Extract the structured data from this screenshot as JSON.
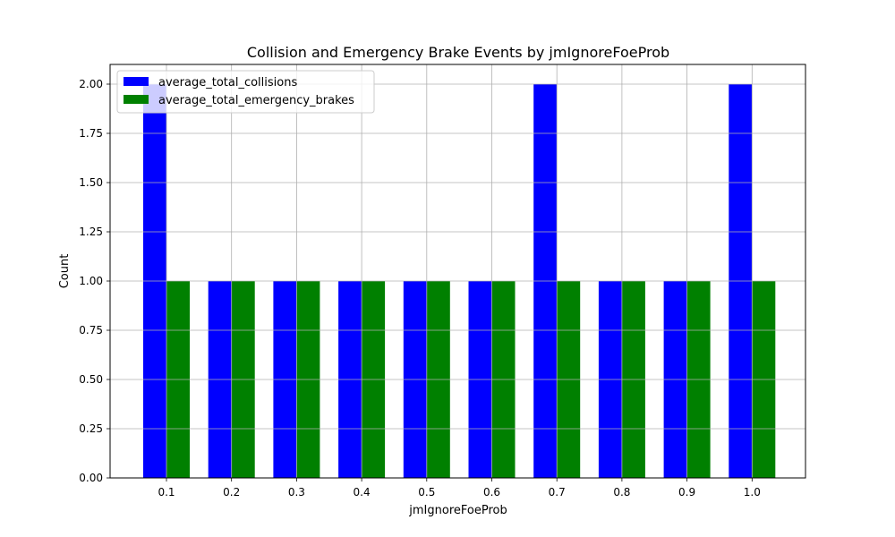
{
  "chart_data": {
    "type": "bar",
    "title": "Collision and Emergency Brake Events by jmIgnoreFoeProb",
    "xlabel": "jmIgnoreFoeProb",
    "ylabel": "Count",
    "categories": [
      "0.1",
      "0.2",
      "0.3",
      "0.4",
      "0.5",
      "0.6",
      "0.7",
      "0.8",
      "0.9",
      "1.0"
    ],
    "series": [
      {
        "name": "average_total_collisions",
        "color": "#0000ff",
        "values": [
          2,
          1,
          1,
          1,
          1,
          1,
          2,
          1,
          1,
          2
        ]
      },
      {
        "name": "average_total_emergency_brakes",
        "color": "#008000",
        "values": [
          1,
          1,
          1,
          1,
          1,
          1,
          1,
          1,
          1,
          1
        ]
      }
    ],
    "ylim": [
      0,
      2.1
    ],
    "yticks": [
      "0.00",
      "0.25",
      "0.50",
      "0.75",
      "1.00",
      "1.25",
      "1.50",
      "1.75",
      "2.00"
    ],
    "grid": true,
    "legend_position": "top-left"
  }
}
